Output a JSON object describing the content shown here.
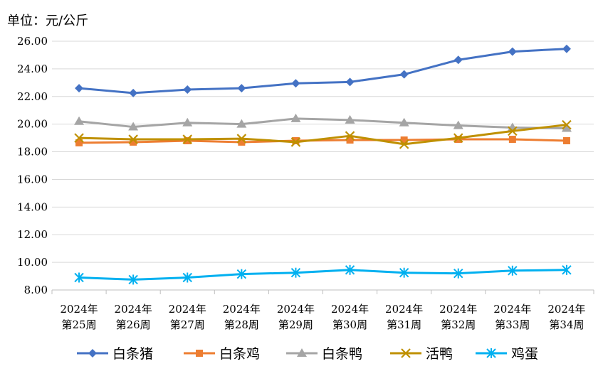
{
  "chart_data": {
    "type": "line",
    "title": "",
    "unit_label": "单位：元/公斤",
    "xlabel": "",
    "ylabel": "",
    "ylim": [
      8,
      26
    ],
    "ytick_step": 2,
    "ytick_labels": [
      "8.00",
      "10.00",
      "12.00",
      "14.00",
      "16.00",
      "18.00",
      "20.00",
      "22.00",
      "24.00",
      "26.00"
    ],
    "categories": [
      [
        "2024年",
        "第25周"
      ],
      [
        "2024年",
        "第26周"
      ],
      [
        "2024年",
        "第27周"
      ],
      [
        "2024年",
        "第28周"
      ],
      [
        "2024年",
        "第29周"
      ],
      [
        "2024年",
        "第30周"
      ],
      [
        "2024年",
        "第31周"
      ],
      [
        "2024年",
        "第32周"
      ],
      [
        "2024年",
        "第33周"
      ],
      [
        "2024年",
        "第34周"
      ]
    ],
    "grid": "horizontal",
    "legend_position": "bottom",
    "series": [
      {
        "name": "白条猪",
        "color": "#4472C4",
        "marker": "diamond",
        "values": [
          22.6,
          22.25,
          22.5,
          22.6,
          22.95,
          23.05,
          23.6,
          24.65,
          25.25,
          25.45
        ]
      },
      {
        "name": "白条鸡",
        "color": "#ED7D31",
        "marker": "square",
        "values": [
          18.65,
          18.7,
          18.8,
          18.7,
          18.8,
          18.85,
          18.85,
          18.9,
          18.9,
          18.8
        ]
      },
      {
        "name": "白条鸭",
        "color": "#A5A5A5",
        "marker": "triangle",
        "values": [
          20.2,
          19.8,
          20.1,
          20.0,
          20.4,
          20.3,
          20.1,
          19.9,
          19.75,
          19.7
        ]
      },
      {
        "name": "活鸭",
        "color": "#BF9000",
        "marker": "x",
        "values": [
          19.0,
          18.9,
          18.9,
          18.95,
          18.7,
          19.15,
          18.55,
          19.0,
          19.5,
          19.95
        ]
      },
      {
        "name": "鸡蛋",
        "color": "#00B0F0",
        "marker": "asterisk",
        "values": [
          8.9,
          8.75,
          8.9,
          9.15,
          9.25,
          9.45,
          9.25,
          9.2,
          9.4,
          9.45
        ]
      }
    ]
  }
}
